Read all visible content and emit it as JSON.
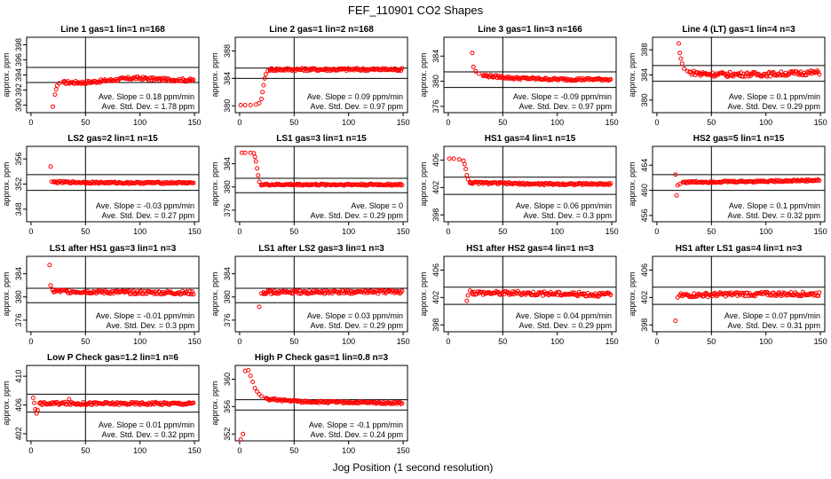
{
  "title": "FEF_110901  CO2 Shapes",
  "xlabel": "Jog Position (1 second resolution)",
  "ylabel": "approx. ppm",
  "colors": {
    "points": "#ff0000",
    "axes": "#000000",
    "background": "#ffffff"
  },
  "chart_data": [
    {
      "type": "scatter",
      "title": "Line 1 gas=1 lin=1 n=168",
      "ylim": [
        389,
        399
      ],
      "yticks": [
        390,
        392,
        394,
        396,
        398
      ],
      "xlim": [
        -4,
        154
      ],
      "xticks": [
        0,
        50,
        100,
        150
      ],
      "vline": 50,
      "hlines": [
        393,
        395
      ],
      "slope": "Ave. Slope = 0.18  ppm/min",
      "stddev": "Ave. Std. Dev. = 1.78  ppm",
      "points": [
        [
          20,
          389.8
        ],
        [
          22,
          391.4
        ],
        [
          23,
          392.1
        ],
        [
          24,
          392.6
        ],
        [
          26,
          392.9
        ],
        [
          30,
          393.0
        ]
      ],
      "trend": [
        [
          30,
          393.0
        ],
        [
          50,
          393.0
        ],
        [
          80,
          393.4
        ],
        [
          95,
          393.6
        ],
        [
          120,
          393.4
        ],
        [
          150,
          393.3
        ]
      ],
      "trend_sd": 0.2
    },
    {
      "type": "scatter",
      "title": "Line 2 gas=1 lin=2 n=168",
      "ylim": [
        379,
        390
      ],
      "yticks": [
        380,
        384,
        388
      ],
      "xlim": [
        -4,
        154
      ],
      "xticks": [
        0,
        50,
        100,
        150
      ],
      "vline": 50,
      "hlines": [
        384,
        385.5
      ],
      "slope": "Ave. Slope = 0.09  ppm/min",
      "stddev": "Ave. Std. Dev. = 0.97  ppm",
      "points": [
        [
          1,
          380.1
        ],
        [
          5,
          380.1
        ],
        [
          10,
          380.1
        ],
        [
          15,
          380.2
        ],
        [
          18,
          380.4
        ],
        [
          20,
          381.0
        ],
        [
          21,
          382.0
        ],
        [
          22,
          383.0
        ],
        [
          23,
          384.0
        ],
        [
          24,
          384.6
        ],
        [
          26,
          385.1
        ],
        [
          28,
          385.3
        ]
      ],
      "trend": [
        [
          28,
          385.3
        ],
        [
          50,
          385.3
        ],
        [
          100,
          385.3
        ],
        [
          150,
          385.3
        ]
      ],
      "trend_sd": 0.2
    },
    {
      "type": "scatter",
      "title": "Line 3 gas=1 lin=3 n=166",
      "ylim": [
        375,
        387
      ],
      "yticks": [
        376,
        380,
        384
      ],
      "xlim": [
        -4,
        154
      ],
      "xticks": [
        0,
        50,
        100,
        150
      ],
      "vline": 50,
      "hlines": [
        379,
        381.5
      ],
      "slope": "Ave. Slope = -0.09  ppm/min",
      "stddev": "Ave. Std. Dev. = 0.97  ppm",
      "points": [
        [
          22,
          384.5
        ],
        [
          23,
          382.3
        ],
        [
          25,
          381.6
        ],
        [
          28,
          381.2
        ],
        [
          32,
          380.9
        ]
      ],
      "trend": [
        [
          32,
          380.9
        ],
        [
          60,
          380.5
        ],
        [
          100,
          380.3
        ],
        [
          150,
          380.3
        ]
      ],
      "trend_sd": 0.2
    },
    {
      "type": "scatter",
      "title": "Line 4 (LT) gas=1 lin=4 n=3",
      "ylim": [
        378,
        390
      ],
      "yticks": [
        380,
        384,
        388
      ],
      "xlim": [
        -4,
        154
      ],
      "xticks": [
        0,
        50,
        100,
        150
      ],
      "vline": 50,
      "hlines": [
        383,
        385.5
      ],
      "slope": "Ave. Slope = 0.1  ppm/min",
      "stddev": "Ave. Std. Dev. = 0.29  ppm",
      "points": [
        [
          20,
          389.0
        ],
        [
          21,
          387.5
        ],
        [
          22,
          386.6
        ],
        [
          23,
          385.8
        ],
        [
          25,
          385.0
        ],
        [
          28,
          384.6
        ],
        [
          40,
          383.9
        ],
        [
          45,
          384.2
        ],
        [
          65,
          383.7
        ]
      ],
      "trend": [
        [
          30,
          384.4
        ],
        [
          50,
          384.1
        ],
        [
          100,
          384.1
        ],
        [
          150,
          384.4
        ]
      ],
      "trend_sd": 0.35
    },
    {
      "type": "scatter",
      "title": "LS2 gas=2 lin=1 n=15",
      "ylim": [
        346,
        358
      ],
      "yticks": [
        348,
        352,
        356
      ],
      "xlim": [
        -4,
        154
      ],
      "xticks": [
        0,
        50,
        100,
        150
      ],
      "vline": 50,
      "hlines": [
        351,
        353.5
      ],
      "slope": "Ave. Slope = -0.03  ppm/min",
      "stddev": "Ave. Std. Dev. = 0.27  ppm",
      "points": [
        [
          18,
          354.8
        ],
        [
          19,
          352.4
        ],
        [
          21,
          352.3
        ]
      ],
      "trend": [
        [
          21,
          352.3
        ],
        [
          80,
          352.2
        ],
        [
          150,
          352.2
        ]
      ],
      "trend_sd": 0.15
    },
    {
      "type": "scatter",
      "title": "LS1 gas=3 lin=1 n=15",
      "ylim": [
        374,
        387
      ],
      "yticks": [
        376,
        380,
        384
      ],
      "xlim": [
        -4,
        154
      ],
      "xticks": [
        0,
        50,
        100,
        150
      ],
      "vline": 50,
      "hlines": [
        379,
        381.5
      ],
      "slope": "Ave. Slope = 0",
      "stddev": "Ave. Std. Dev. = 0.29  ppm",
      "points": [
        [
          2,
          385.9
        ],
        [
          5,
          385.9
        ],
        [
          10,
          385.9
        ],
        [
          13,
          385.8
        ],
        [
          14,
          385.2
        ],
        [
          15,
          384.4
        ],
        [
          16,
          383.2
        ],
        [
          17,
          382.0
        ],
        [
          18,
          380.9
        ],
        [
          20,
          380.4
        ]
      ],
      "trend": [
        [
          20,
          380.4
        ],
        [
          80,
          380.4
        ],
        [
          150,
          380.4
        ]
      ],
      "trend_sd": 0.15
    },
    {
      "type": "scatter",
      "title": "HS1 gas=4 lin=1 n=15",
      "ylim": [
        397,
        408
      ],
      "yticks": [
        398,
        402,
        406
      ],
      "xlim": [
        -4,
        154
      ],
      "xticks": [
        0,
        50,
        100,
        150
      ],
      "vline": 50,
      "hlines": [
        401,
        403.5
      ],
      "slope": "Ave. Slope = 0.06  ppm/min",
      "stddev": "Ave. Std. Dev. = 0.3  ppm",
      "points": [
        [
          1,
          406.2
        ],
        [
          5,
          406.2
        ],
        [
          10,
          406.1
        ],
        [
          14,
          405.9
        ],
        [
          15,
          405.4
        ],
        [
          16,
          404.7
        ],
        [
          17,
          403.8
        ],
        [
          18,
          403.2
        ],
        [
          20,
          402.8
        ]
      ],
      "trend": [
        [
          20,
          402.7
        ],
        [
          80,
          402.5
        ],
        [
          150,
          402.5
        ]
      ],
      "trend_sd": 0.15
    },
    {
      "type": "scatter",
      "title": "HS2 gas=5 lin=1 n=15",
      "ylim": [
        455,
        467
      ],
      "yticks": [
        456,
        460,
        464
      ],
      "xlim": [
        -4,
        154
      ],
      "xticks": [
        0,
        50,
        100,
        150
      ],
      "vline": 50,
      "hlines": [
        460,
        462.5
      ],
      "slope": "Ave. Slope = 0.1  ppm/min",
      "stddev": "Ave. Std. Dev. = 0.32  ppm",
      "points": [
        [
          17,
          462.5
        ],
        [
          18,
          459.2
        ],
        [
          19,
          460.8
        ],
        [
          21,
          461.0
        ],
        [
          24,
          461.3
        ]
      ],
      "trend": [
        [
          24,
          461.3
        ],
        [
          80,
          461.4
        ],
        [
          150,
          461.6
        ]
      ],
      "trend_sd": 0.15
    },
    {
      "type": "scatter",
      "title": "LS1 after HS1 gas=3 lin=1 n=3",
      "ylim": [
        374,
        387
      ],
      "yticks": [
        376,
        380,
        384
      ],
      "xlim": [
        -4,
        154
      ],
      "xticks": [
        0,
        50,
        100,
        150
      ],
      "vline": 50,
      "hlines": [
        379,
        381.5
      ],
      "slope": "Ave. Slope = -0.01  ppm/min",
      "stddev": "Ave. Std. Dev. = 0.3  ppm",
      "points": [
        [
          17,
          385.5
        ],
        [
          18,
          382.0
        ],
        [
          20,
          381.3
        ]
      ],
      "trend": [
        [
          20,
          381.0
        ],
        [
          80,
          380.8
        ],
        [
          150,
          380.7
        ]
      ],
      "trend_sd": 0.3
    },
    {
      "type": "scatter",
      "title": "LS1 after LS2 gas=3 lin=1 n=3",
      "ylim": [
        374,
        387
      ],
      "yticks": [
        376,
        380,
        384
      ],
      "xlim": [
        -4,
        154
      ],
      "xticks": [
        0,
        50,
        100,
        150
      ],
      "vline": 50,
      "hlines": [
        379,
        381.5
      ],
      "slope": "Ave. Slope = 0.03  ppm/min",
      "stddev": "Ave. Std. Dev. = 0.29  ppm",
      "points": [
        [
          18,
          378.3
        ],
        [
          20,
          380.6
        ],
        [
          22,
          380.8
        ]
      ],
      "trend": [
        [
          22,
          380.8
        ],
        [
          80,
          380.8
        ],
        [
          150,
          380.9
        ]
      ],
      "trend_sd": 0.3
    },
    {
      "type": "scatter",
      "title": "HS1 after HS2 gas=4 lin=1 n=3",
      "ylim": [
        397,
        408
      ],
      "yticks": [
        398,
        402,
        406
      ],
      "xlim": [
        -4,
        154
      ],
      "xticks": [
        0,
        50,
        100,
        150
      ],
      "vline": 50,
      "hlines": [
        401,
        403.5
      ],
      "slope": "Ave. Slope = 0.04  ppm/min",
      "stddev": "Ave. Std. Dev. = 0.29  ppm",
      "points": [
        [
          17,
          401.5
        ],
        [
          18,
          402.3
        ],
        [
          20,
          403.0
        ],
        [
          22,
          402.8
        ]
      ],
      "trend": [
        [
          22,
          402.7
        ],
        [
          80,
          402.6
        ],
        [
          150,
          402.4
        ]
      ],
      "trend_sd": 0.3
    },
    {
      "type": "scatter",
      "title": "HS1 after LS1 gas=4 lin=1 n=3",
      "ylim": [
        397,
        408
      ],
      "yticks": [
        398,
        402,
        406
      ],
      "xlim": [
        -4,
        154
      ],
      "xticks": [
        0,
        50,
        100,
        150
      ],
      "vline": 50,
      "hlines": [
        401,
        403.5
      ],
      "slope": "Ave. Slope = 0.07  ppm/min",
      "stddev": "Ave. Std. Dev. = 0.31  ppm",
      "points": [
        [
          17,
          398.6
        ],
        [
          19,
          402.0
        ],
        [
          21,
          402.3
        ]
      ],
      "trend": [
        [
          21,
          402.3
        ],
        [
          80,
          402.5
        ],
        [
          150,
          402.5
        ]
      ],
      "trend_sd": 0.3
    },
    {
      "type": "scatter",
      "title": "Low P Check gas=1.2 lin=1 n=6",
      "ylim": [
        401,
        411.5
      ],
      "yticks": [
        402,
        406,
        410
      ],
      "xlim": [
        -4,
        154
      ],
      "xticks": [
        0,
        50,
        100,
        150
      ],
      "vline": 50,
      "hlines": [
        405,
        407.5
      ],
      "slope": "Ave. Slope = 0.01  ppm/min",
      "stddev": "Ave. Std. Dev. = 0.32  ppm",
      "points": [
        [
          2,
          407.0
        ],
        [
          3,
          406.3
        ],
        [
          4,
          405.4
        ],
        [
          5,
          404.8
        ],
        [
          6,
          405.3
        ],
        [
          8,
          406.2
        ],
        [
          35,
          406.8
        ]
      ],
      "trend": [
        [
          8,
          406.2
        ],
        [
          80,
          406.2
        ],
        [
          150,
          406.2
        ]
      ],
      "trend_sd": 0.2
    },
    {
      "type": "scatter",
      "title": "High P Check gas=1 lin=0.8 n=3",
      "ylim": [
        351,
        362
      ],
      "yticks": [
        352,
        356,
        360
      ],
      "xlim": [
        -4,
        154
      ],
      "xticks": [
        0,
        50,
        100,
        150
      ],
      "vline": 50,
      "hlines": [
        355.5,
        357
      ],
      "slope": "Ave. Slope = -0.1  ppm/min",
      "stddev": "Ave. Std. Dev. = 0.24  ppm",
      "points": [
        [
          1,
          351.2
        ],
        [
          3,
          352.0
        ],
        [
          5,
          361.2
        ],
        [
          8,
          361.3
        ],
        [
          10,
          360.5
        ],
        [
          12,
          359.6
        ],
        [
          14,
          358.7
        ],
        [
          16,
          358.2
        ],
        [
          18,
          357.8
        ],
        [
          20,
          357.5
        ],
        [
          24,
          357.2
        ]
      ],
      "trend": [
        [
          24,
          357.1
        ],
        [
          60,
          356.7
        ],
        [
          100,
          356.6
        ],
        [
          150,
          356.5
        ]
      ],
      "trend_sd": 0.15
    }
  ]
}
